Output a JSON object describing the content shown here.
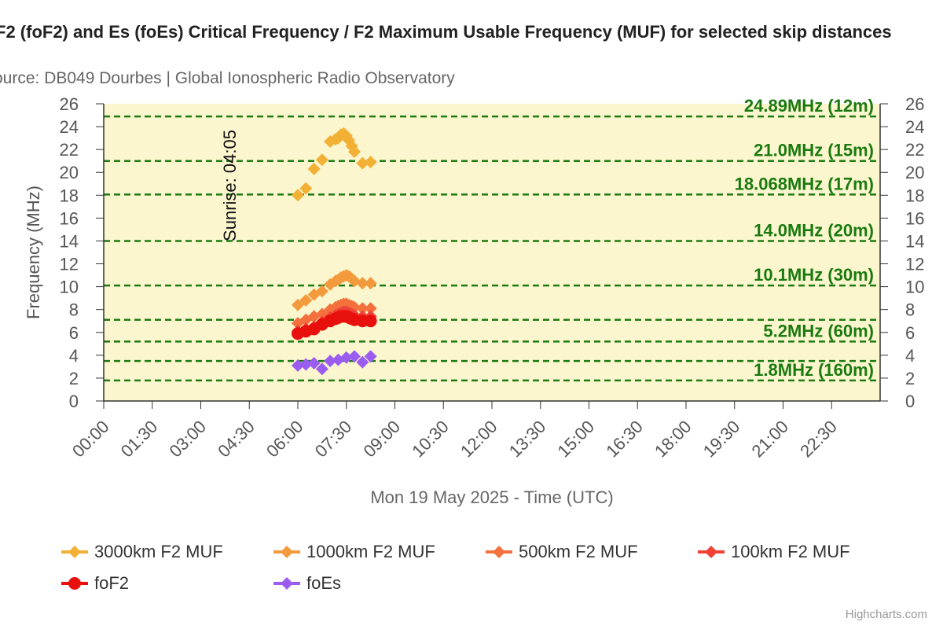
{
  "header": {
    "title": "F2 (foF2) and Es (foEs) Critical Frequency / F2 Maximum Usable Frequency (MUF) for selected skip distances",
    "subtitle": "ource: DB049 Dourbes | Global Ionospheric Radio Observatory"
  },
  "credits": "Highcharts.com",
  "colors": {
    "plot_background": "#fbf6cd",
    "band_line": "#1e7b14",
    "band_label": "#1a7a10",
    "axis_text": "#555555"
  },
  "chart_data": {
    "type": "scatter",
    "title": "F2 (foF2) and Es (foEs) Critical Frequency / F2 Maximum Usable Frequency (MUF) for selected skip distances",
    "subtitle": "ource: DB049 Dourbes | Global Ionospheric Radio Observatory",
    "xlabel": "Mon 19 May 2025 - Time (UTC)",
    "ylabel": "Frequency (MHz)",
    "xlim": [
      "00:00",
      "24:00"
    ],
    "ylim": [
      0,
      26
    ],
    "x_ticks": [
      "00:00",
      "01:30",
      "03:00",
      "04:30",
      "06:00",
      "07:30",
      "09:00",
      "10:30",
      "12:00",
      "13:30",
      "15:00",
      "16:30",
      "18:00",
      "19:30",
      "21:00",
      "22:30"
    ],
    "y_ticks": [
      0,
      2,
      4,
      6,
      8,
      10,
      12,
      14,
      16,
      18,
      20,
      22,
      24,
      26
    ],
    "grid": false,
    "legend_position": "bottom",
    "bands": [
      {
        "freq": 24.89,
        "label": "24.89MHz (12m)"
      },
      {
        "freq": 21.0,
        "label": "21.0MHz (15m)"
      },
      {
        "freq": 18.068,
        "label": "18.068MHz (17m)"
      },
      {
        "freq": 14.0,
        "label": "14.0MHz (20m)"
      },
      {
        "freq": 10.1,
        "label": "10.1MHz (30m)"
      },
      {
        "freq": 7.1,
        "label": ""
      },
      {
        "freq": 5.2,
        "label": "5.2MHz (60m)"
      },
      {
        "freq": 3.5,
        "label": ""
      },
      {
        "freq": 1.8,
        "label": "1.8MHz (160m)"
      }
    ],
    "annotations": [
      {
        "text": "Sunrise: 04:05",
        "x": "04:05"
      }
    ],
    "series": [
      {
        "name": "3000km F2 MUF",
        "color": "#f2b035",
        "marker": "diamond",
        "x": [
          "06:00",
          "06:15",
          "06:30",
          "06:45",
          "07:00",
          "07:10",
          "07:15",
          "07:20",
          "07:25",
          "07:30",
          "07:35",
          "07:40",
          "07:45",
          "08:00",
          "08:15"
        ],
        "y": [
          18.0,
          18.6,
          20.3,
          21.1,
          22.7,
          22.9,
          23.0,
          23.3,
          23.4,
          23.2,
          22.8,
          22.3,
          21.8,
          20.8,
          20.9
        ]
      },
      {
        "name": "1000km F2 MUF",
        "color": "#f39a3c",
        "marker": "diamond",
        "x": [
          "06:00",
          "06:15",
          "06:30",
          "06:45",
          "07:00",
          "07:10",
          "07:15",
          "07:20",
          "07:25",
          "07:30",
          "07:35",
          "07:40",
          "07:45",
          "08:00",
          "08:15"
        ],
        "y": [
          8.4,
          8.8,
          9.3,
          9.6,
          10.2,
          10.5,
          10.6,
          10.8,
          10.9,
          11.0,
          10.9,
          10.7,
          10.5,
          10.3,
          10.3
        ]
      },
      {
        "name": "500km F2 MUF",
        "color": "#f4703c",
        "marker": "diamond",
        "x": [
          "06:00",
          "06:15",
          "06:30",
          "06:45",
          "07:00",
          "07:10",
          "07:15",
          "07:20",
          "07:25",
          "07:30",
          "07:35",
          "07:40",
          "07:45",
          "08:00",
          "08:15"
        ],
        "y": [
          6.8,
          7.1,
          7.4,
          7.6,
          8.0,
          8.2,
          8.3,
          8.4,
          8.5,
          8.5,
          8.4,
          8.3,
          8.2,
          8.1,
          8.1
        ]
      },
      {
        "name": "100km F2 MUF",
        "color": "#ef4136",
        "marker": "diamond",
        "x": [
          "06:00",
          "06:15",
          "06:30",
          "06:45",
          "07:00",
          "07:10",
          "07:15",
          "07:20",
          "07:25",
          "07:30",
          "07:35",
          "07:40",
          "07:45",
          "08:00",
          "08:15"
        ],
        "y": [
          6.1,
          6.3,
          6.5,
          6.9,
          7.3,
          7.5,
          7.6,
          7.7,
          7.8,
          7.8,
          7.7,
          7.6,
          7.5,
          7.4,
          7.4
        ]
      },
      {
        "name": "foF2",
        "color": "#e8100d",
        "marker": "circle",
        "x": [
          "06:00",
          "06:15",
          "06:30",
          "06:45",
          "07:00",
          "07:10",
          "07:15",
          "07:20",
          "07:25",
          "07:30",
          "07:35",
          "07:40",
          "07:45",
          "08:00",
          "08:15"
        ],
        "y": [
          5.9,
          6.1,
          6.3,
          6.7,
          7.0,
          7.2,
          7.3,
          7.4,
          7.4,
          7.4,
          7.3,
          7.2,
          7.1,
          7.0,
          7.0
        ]
      },
      {
        "name": "foEs",
        "color": "#9b5df0",
        "marker": "diamond",
        "x": [
          "06:00",
          "06:15",
          "06:30",
          "06:45",
          "07:00",
          "07:15",
          "07:30",
          "07:45",
          "08:00",
          "08:15"
        ],
        "y": [
          3.1,
          3.2,
          3.3,
          2.8,
          3.5,
          3.6,
          3.8,
          3.9,
          3.4,
          3.9
        ]
      }
    ]
  }
}
